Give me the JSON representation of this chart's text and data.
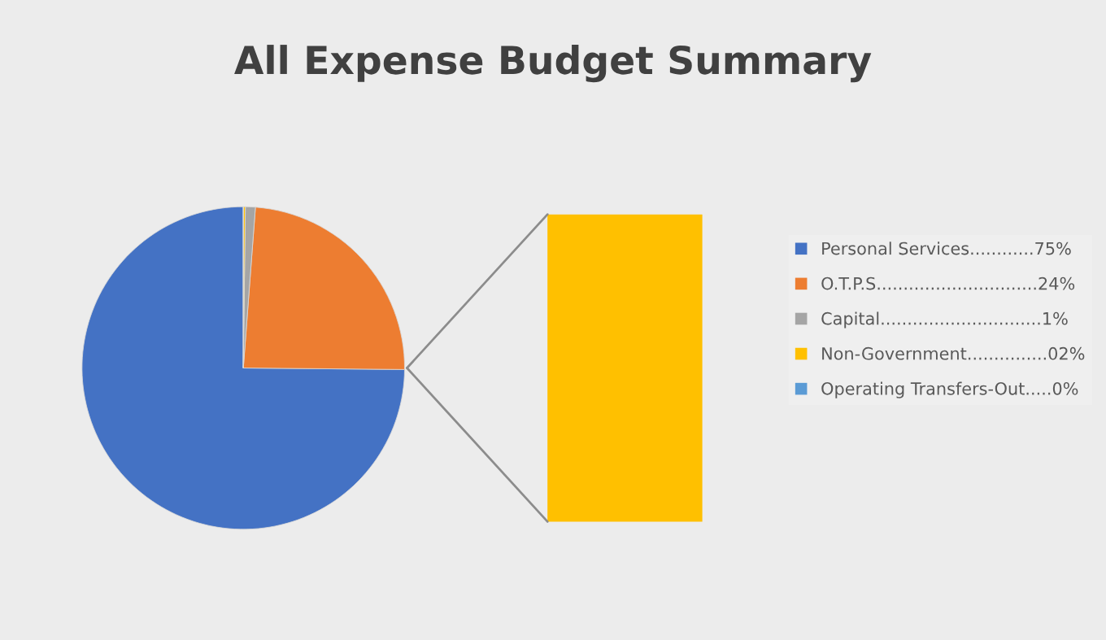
{
  "chart_data": {
    "type": "pie",
    "title": "All Expense Budget Summary",
    "categories": [
      "Personal Services............75%",
      "O.T.P.S..............................24%",
      "Capital..............................1%",
      "Non-Government...............02%",
      "Operating Transfers-Out.....0%"
    ],
    "values": [
      75,
      24,
      1,
      0.2,
      0
    ],
    "colors": [
      "#4472c4",
      "#ed7d31",
      "#a5a5a5",
      "#ffc000",
      "#5b9bd5"
    ],
    "legend": "right"
  }
}
